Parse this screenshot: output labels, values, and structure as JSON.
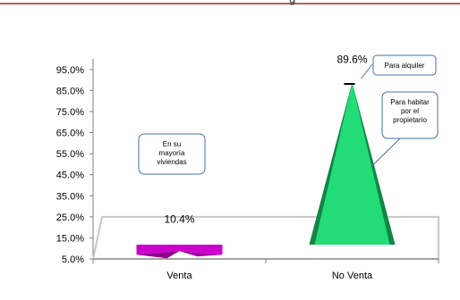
{
  "header": {
    "partial_title": "g",
    "rule_color": "#a0282e"
  },
  "chart_data": {
    "type": "bar",
    "bar_shape": "cone",
    "categories": [
      "Venta",
      "No Venta"
    ],
    "values": [
      10.4,
      89.6
    ],
    "data_labels": [
      "10.4%",
      "89.6%"
    ],
    "y_ticks": [
      5.0,
      15.0,
      25.0,
      35.0,
      45.0,
      55.0,
      65.0,
      75.0,
      85.0,
      95.0
    ],
    "y_tick_labels": [
      "5.0%",
      "15.0%",
      "25.0%",
      "35.0%",
      "45.0%",
      "55.0%",
      "65.0%",
      "75.0%",
      "85.0%",
      "95.0%"
    ],
    "ylim": [
      5,
      100
    ],
    "grid": false,
    "colors": [
      "#cc00cc",
      "#22dd77"
    ],
    "floor_color": "#c8c8c8",
    "annotations": [
      {
        "id": "venta",
        "lines": [
          "En su",
          "mayoría",
          "viviendas"
        ]
      },
      {
        "id": "alquiler",
        "lines": [
          "Para alquiler"
        ]
      },
      {
        "id": "habitar",
        "lines": [
          "Para habitar",
          "por el",
          "propietario"
        ]
      }
    ],
    "annotation_border_color": "#4a6fa5"
  }
}
